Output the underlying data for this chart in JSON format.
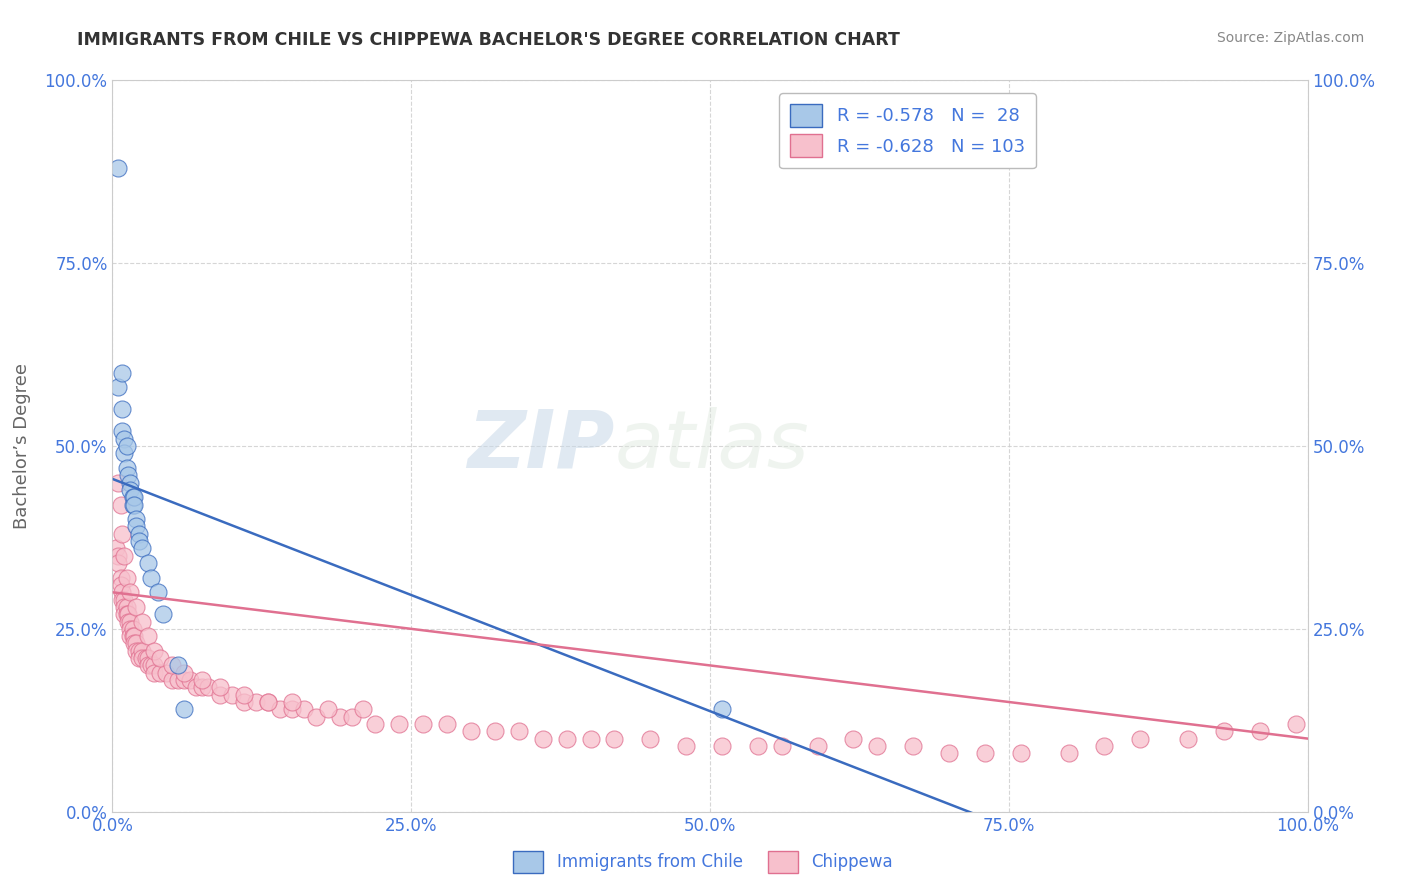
{
  "title": "IMMIGRANTS FROM CHILE VS CHIPPEWA BACHELOR'S DEGREE CORRELATION CHART",
  "source": "Source: ZipAtlas.com",
  "ylabel": "Bachelor’s Degree",
  "legend_label1": "Immigrants from Chile",
  "legend_label2": "Chippewa",
  "r1": -0.578,
  "n1": 28,
  "r2": -0.628,
  "n2": 103,
  "xlim": [
    0,
    1.0
  ],
  "ylim": [
    0,
    1.0
  ],
  "xticks": [
    0.0,
    0.25,
    0.5,
    0.75,
    1.0
  ],
  "yticks": [
    0.0,
    0.25,
    0.5,
    0.75,
    1.0
  ],
  "xticklabels": [
    "0.0%",
    "25.0%",
    "50.0%",
    "75.0%",
    "100.0%"
  ],
  "yticklabels": [
    "0.0%",
    "25.0%",
    "50.0%",
    "75.0%",
    "100.0%"
  ],
  "color_blue": "#a8c8e8",
  "color_pink": "#f7c0cc",
  "line_blue": "#3a6bbf",
  "line_pink": "#e07090",
  "background": "#ffffff",
  "grid_color": "#cccccc",
  "title_color": "#333333",
  "axis_label_color": "#666666",
  "tick_color": "#4477dd",
  "blue_scatter_x": [
    0.005,
    0.005,
    0.008,
    0.008,
    0.01,
    0.01,
    0.012,
    0.012,
    0.013,
    0.015,
    0.015,
    0.017,
    0.017,
    0.018,
    0.018,
    0.02,
    0.02,
    0.022,
    0.022,
    0.025,
    0.03,
    0.032,
    0.038,
    0.042,
    0.055,
    0.06,
    0.51,
    0.008
  ],
  "blue_scatter_y": [
    0.88,
    0.58,
    0.55,
    0.52,
    0.51,
    0.49,
    0.5,
    0.47,
    0.46,
    0.45,
    0.44,
    0.43,
    0.42,
    0.43,
    0.42,
    0.4,
    0.39,
    0.38,
    0.37,
    0.36,
    0.34,
    0.32,
    0.3,
    0.27,
    0.2,
    0.14,
    0.14,
    0.6
  ],
  "pink_scatter_x": [
    0.003,
    0.005,
    0.005,
    0.007,
    0.007,
    0.008,
    0.008,
    0.01,
    0.01,
    0.01,
    0.012,
    0.012,
    0.013,
    0.013,
    0.015,
    0.015,
    0.015,
    0.017,
    0.017,
    0.018,
    0.018,
    0.02,
    0.02,
    0.022,
    0.022,
    0.025,
    0.025,
    0.028,
    0.03,
    0.03,
    0.032,
    0.035,
    0.035,
    0.04,
    0.045,
    0.05,
    0.055,
    0.06,
    0.065,
    0.07,
    0.075,
    0.08,
    0.09,
    0.1,
    0.11,
    0.12,
    0.13,
    0.14,
    0.15,
    0.16,
    0.17,
    0.19,
    0.2,
    0.22,
    0.24,
    0.26,
    0.28,
    0.3,
    0.32,
    0.34,
    0.36,
    0.38,
    0.4,
    0.42,
    0.45,
    0.48,
    0.51,
    0.54,
    0.56,
    0.59,
    0.62,
    0.64,
    0.67,
    0.7,
    0.73,
    0.76,
    0.8,
    0.83,
    0.86,
    0.9,
    0.93,
    0.96,
    0.99,
    0.005,
    0.007,
    0.008,
    0.01,
    0.012,
    0.015,
    0.02,
    0.025,
    0.03,
    0.035,
    0.04,
    0.05,
    0.06,
    0.075,
    0.09,
    0.11,
    0.13,
    0.15,
    0.18,
    0.21
  ],
  "pink_scatter_y": [
    0.36,
    0.35,
    0.34,
    0.32,
    0.31,
    0.3,
    0.29,
    0.29,
    0.28,
    0.27,
    0.28,
    0.27,
    0.27,
    0.26,
    0.26,
    0.25,
    0.24,
    0.25,
    0.24,
    0.24,
    0.23,
    0.23,
    0.22,
    0.22,
    0.21,
    0.22,
    0.21,
    0.21,
    0.21,
    0.2,
    0.2,
    0.2,
    0.19,
    0.19,
    0.19,
    0.18,
    0.18,
    0.18,
    0.18,
    0.17,
    0.17,
    0.17,
    0.16,
    0.16,
    0.15,
    0.15,
    0.15,
    0.14,
    0.14,
    0.14,
    0.13,
    0.13,
    0.13,
    0.12,
    0.12,
    0.12,
    0.12,
    0.11,
    0.11,
    0.11,
    0.1,
    0.1,
    0.1,
    0.1,
    0.1,
    0.09,
    0.09,
    0.09,
    0.09,
    0.09,
    0.1,
    0.09,
    0.09,
    0.08,
    0.08,
    0.08,
    0.08,
    0.09,
    0.1,
    0.1,
    0.11,
    0.11,
    0.12,
    0.45,
    0.42,
    0.38,
    0.35,
    0.32,
    0.3,
    0.28,
    0.26,
    0.24,
    0.22,
    0.21,
    0.2,
    0.19,
    0.18,
    0.17,
    0.16,
    0.15,
    0.15,
    0.14,
    0.14
  ],
  "blue_line_x": [
    0.0,
    1.0
  ],
  "blue_line_y": [
    0.455,
    -0.18
  ],
  "pink_line_x": [
    0.0,
    1.0
  ],
  "pink_line_y": [
    0.3,
    0.1
  ],
  "legend_box_color": "#ffffff",
  "legend_border_color": "#bbbbbb"
}
